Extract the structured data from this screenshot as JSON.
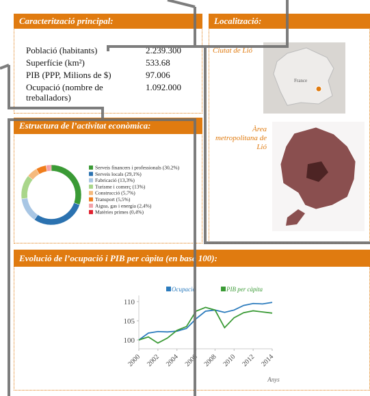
{
  "main": {
    "title": "Caracterització principal:",
    "rows": [
      [
        "Població (habitants)",
        "2.239.300"
      ],
      [
        "Superfície (km²)",
        "533.68"
      ],
      [
        "PIB (PPP, Milions de $)",
        "97.006"
      ],
      [
        "Ocupació (nombre de treballadors)",
        "1.092.000"
      ]
    ]
  },
  "location": {
    "title": "Localització:",
    "city_label": "Ciutat de Lió",
    "metro_label": "Àrea metropolitana de Lió"
  },
  "chart_data": [
    {
      "type": "pie",
      "title": "Estructura de l’activitat econòmica:",
      "categories": [
        "Serveis financers i professionals (30,2%)",
        "Serveis locals (29,1%)",
        "Fabricació (13,3%)",
        "Turisme i comerç (13%)",
        "Construcció (5,7%)",
        "Transport (5,5%)",
        "Aigua, gas i energia (2,4%)",
        "Matèries primes (0,4%)"
      ],
      "values": [
        30.2,
        29.1,
        13.3,
        13,
        5.7,
        5.5,
        2.4,
        0.4
      ],
      "colors": [
        "#3a9a35",
        "#2b72b0",
        "#a8c6e4",
        "#a9d68a",
        "#f5b97c",
        "#f07d1c",
        "#f3a1a9",
        "#e0202e"
      ]
    },
    {
      "type": "line",
      "title": "Evolució de l’ocupació i PIB per càpita (en base 100):",
      "x": [
        2000,
        2001,
        2002,
        2003,
        2004,
        2005,
        2006,
        2007,
        2008,
        2009,
        2010,
        2011,
        2012,
        2013,
        2014
      ],
      "series": [
        {
          "name": "Ocupació",
          "color": "#2b7bbd",
          "values": [
            100,
            101.8,
            102.2,
            102.1,
            102.3,
            103,
            105.5,
            107.5,
            107.8,
            107.2,
            107.8,
            109,
            109.5,
            109.4,
            109.8
          ]
        },
        {
          "name": "PIB per càpita",
          "color": "#3a9a35",
          "values": [
            100,
            100.8,
            99.2,
            100.5,
            102.5,
            103.5,
            107.5,
            108.5,
            107.8,
            103.2,
            105.8,
            107.1,
            107.6,
            107.3,
            107
          ]
        }
      ],
      "xlim": [
        2000,
        2014
      ],
      "xticks": [
        2000,
        2002,
        2004,
        2006,
        2008,
        2010,
        2012,
        2014
      ],
      "ylim": [
        97.7,
        111.6
      ],
      "yticks": [
        100,
        105,
        110
      ],
      "x_label": "Anys"
    }
  ]
}
